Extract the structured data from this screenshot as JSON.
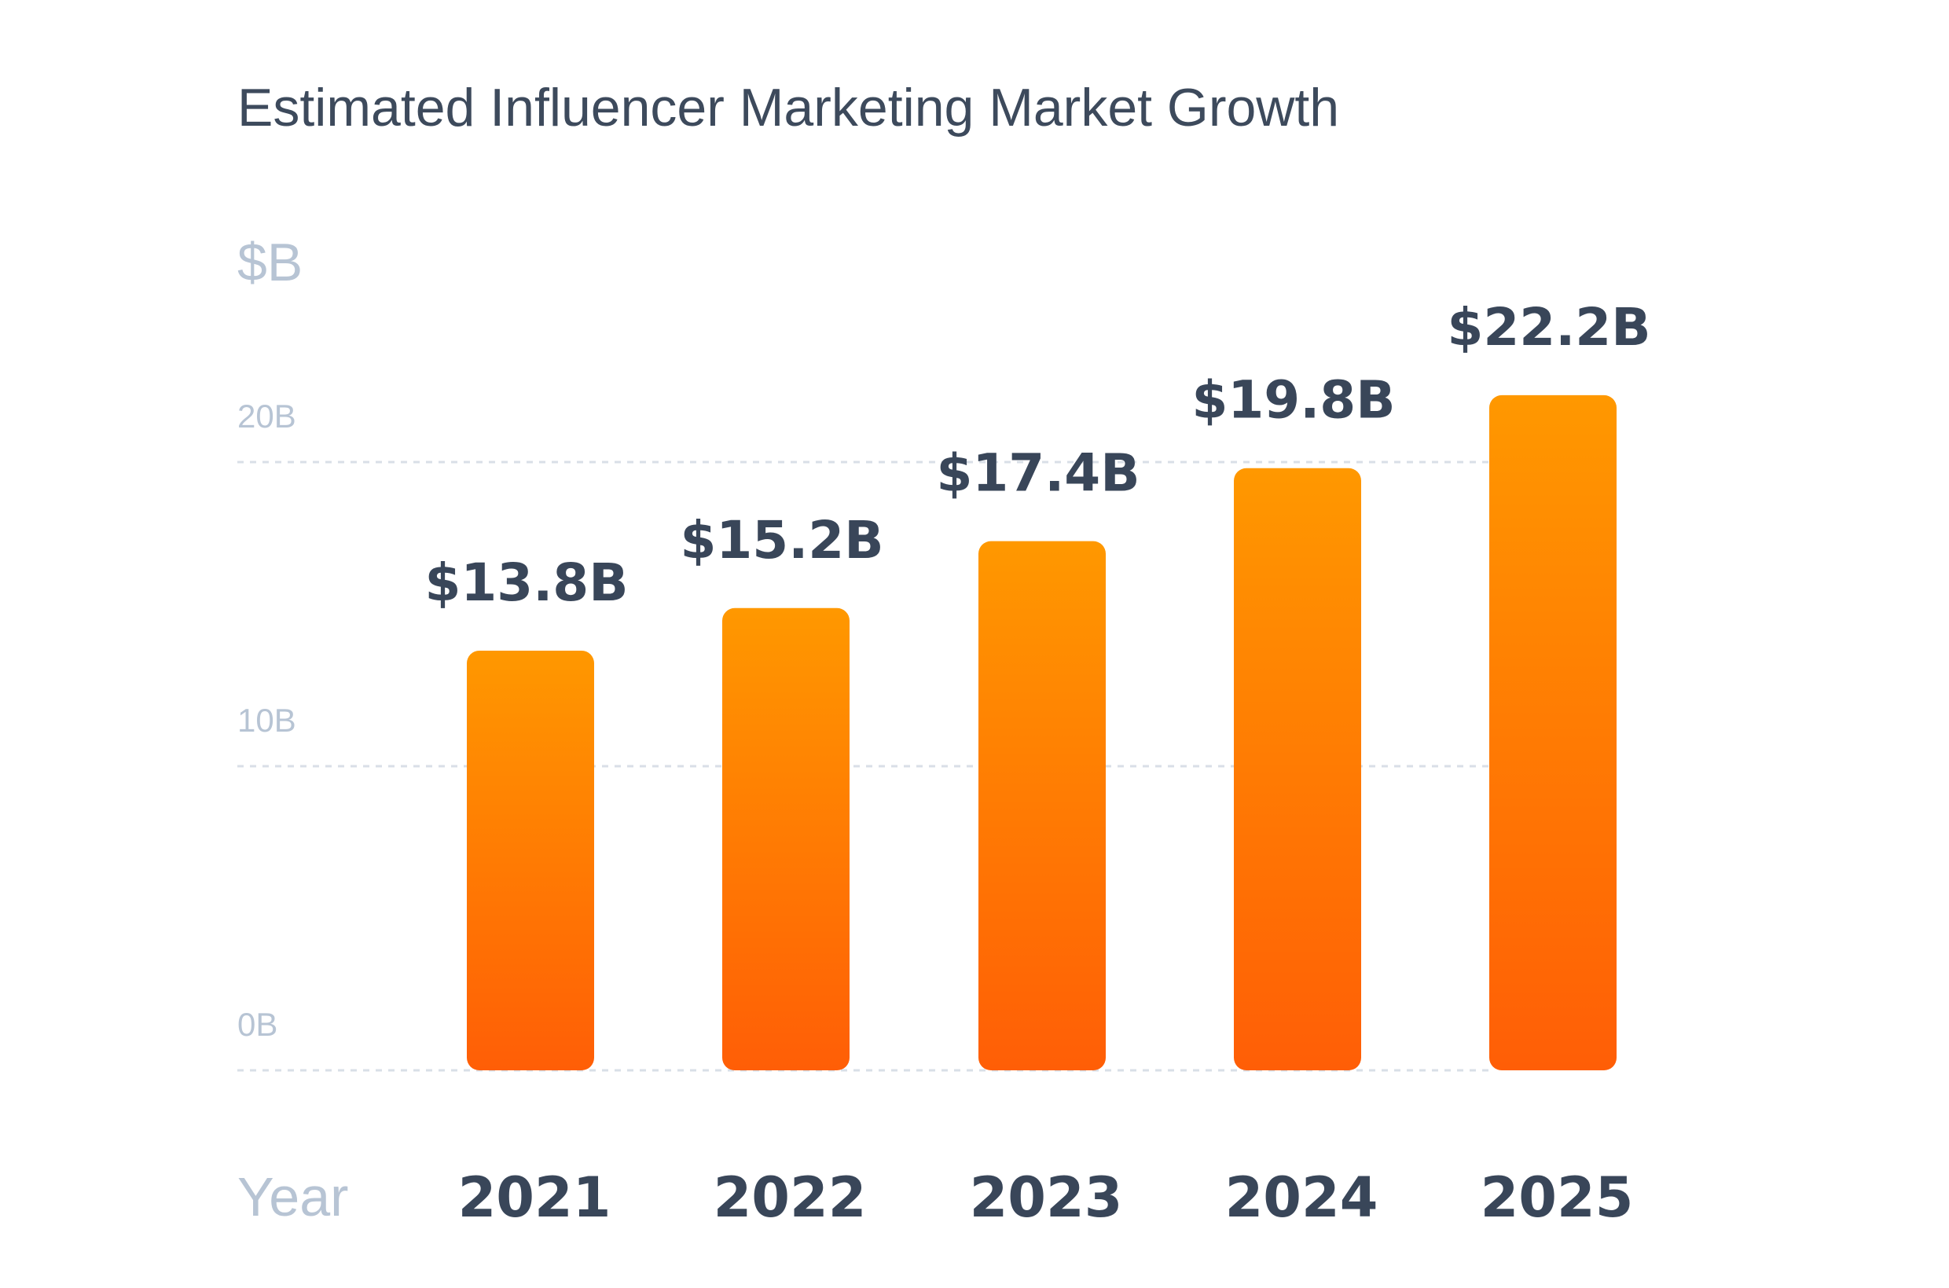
{
  "chart_data": {
    "type": "bar",
    "title": "Estimated Influencer Marketing Market Growth",
    "ylabel": "$B",
    "xlabel": "Year",
    "categories": [
      "2021",
      "2022",
      "2023",
      "2024",
      "2025"
    ],
    "values": [
      13.8,
      15.2,
      17.4,
      19.8,
      22.2
    ],
    "value_labels": [
      "$13.8B",
      "$15.2B",
      "$17.4B",
      "$19.8B",
      "$22.2B"
    ],
    "yticks": [
      0,
      10,
      20
    ],
    "ytick_labels": [
      "0B",
      "10B",
      "20B"
    ],
    "ylim": [
      0,
      20
    ],
    "grid": true,
    "colors": {
      "bar_top": "#ff9800",
      "bar_bottom": "#ff5e06"
    }
  }
}
